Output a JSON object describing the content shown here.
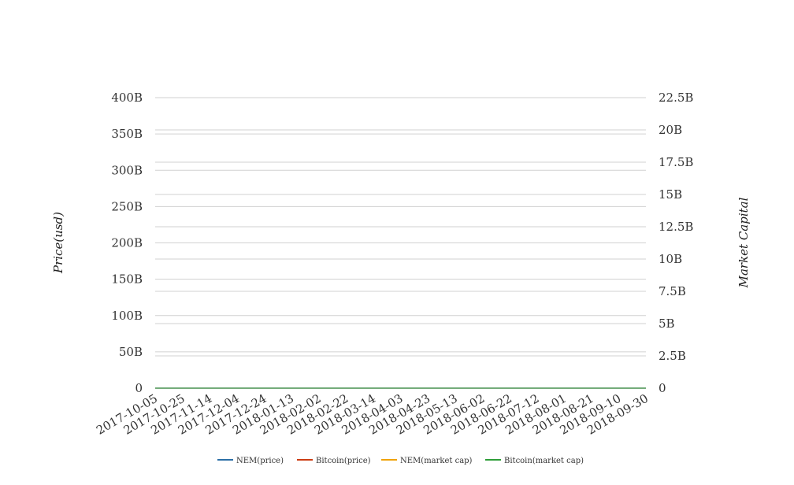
{
  "chart_data": {
    "type": "line",
    "ylabel": "Price(usd)",
    "y2label": "Market Capital",
    "ylim": [
      0,
      400000000000
    ],
    "y2lim": [
      0,
      22500000000
    ],
    "y_ticks": [
      "0",
      "50B",
      "100B",
      "150B",
      "200B",
      "250B",
      "300B",
      "350B",
      "400B"
    ],
    "y2_ticks": [
      "0",
      "2.5B",
      "5B",
      "7.5B",
      "10B",
      "12.5B",
      "15B",
      "17.5B",
      "20B",
      "22.5B"
    ],
    "x_ticks": [
      "2017-10-05",
      "2017-10-25",
      "2017-11-14",
      "2017-12-04",
      "2017-12-24",
      "2018-01-13",
      "2018-02-02",
      "2018-02-22",
      "2018-03-14",
      "2018-04-03",
      "2018-04-23",
      "2018-05-13",
      "2018-06-02",
      "2018-06-22",
      "2018-07-12",
      "2018-08-01",
      "2018-08-21",
      "2018-09-10",
      "2018-09-30"
    ],
    "x_range": [
      "2017-10-05",
      "2018-09-30"
    ],
    "grid": true,
    "legend_position": "bottom",
    "series": [
      {
        "name": "NEM(price)",
        "axis": "left",
        "color": "#2c6fa6",
        "x": [
          "2017-10-05",
          "2018-09-30"
        ],
        "values": [
          0,
          0
        ]
      },
      {
        "name": "Bitcoin(price)",
        "axis": "left",
        "color": "#cc3d14",
        "x": [
          "2017-10-05",
          "2017-10-10",
          "2017-10-13",
          "2017-10-18",
          "2017-10-25",
          "2017-10-28",
          "2017-11-02",
          "2017-11-08",
          "2017-11-11",
          "2017-11-14",
          "2017-11-18",
          "2017-11-22",
          "2017-11-26",
          "2017-11-29",
          "2017-12-01",
          "2017-12-04",
          "2017-12-07",
          "2017-12-09",
          "2017-12-12",
          "2017-12-14",
          "2017-12-17",
          "2017-12-19",
          "2017-12-22",
          "2017-12-24",
          "2017-12-26",
          "2017-12-29",
          "2018-01-01",
          "2018-01-03",
          "2018-01-06",
          "2018-01-08",
          "2018-01-10",
          "2018-01-13",
          "2018-01-16",
          "2018-01-18",
          "2018-01-21",
          "2018-01-24",
          "2018-01-28",
          "2018-02-02",
          "2018-02-05",
          "2018-02-08",
          "2018-02-12",
          "2018-02-16",
          "2018-02-20",
          "2018-02-22",
          "2018-02-25",
          "2018-03-01",
          "2018-03-05",
          "2018-03-09",
          "2018-03-13",
          "2018-03-16",
          "2018-03-20",
          "2018-03-25",
          "2018-03-30",
          "2018-04-03",
          "2018-04-06",
          "2018-04-10",
          "2018-04-14",
          "2018-04-18",
          "2018-04-23",
          "2018-04-27",
          "2018-05-01",
          "2018-05-05",
          "2018-05-09",
          "2018-05-13",
          "2018-05-18",
          "2018-05-23",
          "2018-05-28",
          "2018-06-02",
          "2018-06-07",
          "2018-06-12",
          "2018-06-17",
          "2018-06-22",
          "2018-06-27",
          "2018-07-02",
          "2018-07-07",
          "2018-07-12",
          "2018-07-17",
          "2018-07-22",
          "2018-07-27",
          "2018-08-01",
          "2018-08-06",
          "2018-08-11",
          "2018-08-16",
          "2018-08-21",
          "2018-08-26",
          "2018-08-31",
          "2018-09-05",
          "2018-09-10",
          "2018-09-15",
          "2018-09-20",
          "2018-09-25",
          "2018-09-30"
        ],
        "values": [
          70,
          78,
          96,
          94,
          100,
          95,
          118,
          122,
          100,
          130,
          136,
          140,
          155,
          170,
          178,
          190,
          205,
          298,
          255,
          290,
          275,
          325,
          310,
          280,
          250,
          265,
          240,
          270,
          235,
          258,
          240,
          285,
          250,
          215,
          230,
          200,
          190,
          195,
          150,
          130,
          150,
          165,
          175,
          190,
          180,
          175,
          185,
          195,
          170,
          155,
          150,
          135,
          145,
          125,
          118,
          120,
          130,
          138,
          150,
          155,
          160,
          165,
          155,
          150,
          140,
          130,
          125,
          130,
          128,
          120,
          115,
          112,
          108,
          105,
          120,
          110,
          125,
          138,
          130,
          120,
          112,
          110,
          118,
          125,
          128,
          112,
          110,
          115,
          112,
          115,
          118,
          113
        ]
      },
      {
        "name": "NEM(market cap)",
        "axis": "right",
        "color": "#f0a30a",
        "x": [
          "2017-10-05",
          "2017-10-15",
          "2017-10-25",
          "2017-11-04",
          "2017-11-14",
          "2017-11-24",
          "2017-12-04",
          "2017-12-07",
          "2017-12-08",
          "2017-12-10",
          "2017-12-13",
          "2017-12-16",
          "2017-12-19",
          "2017-12-22",
          "2017-12-24",
          "2017-12-27",
          "2017-12-30",
          "2018-01-02",
          "2018-01-03",
          "2018-01-05",
          "2018-01-07",
          "2018-01-09",
          "2018-01-11",
          "2018-01-13",
          "2018-01-15",
          "2018-01-17",
          "2018-01-19",
          "2018-01-22",
          "2018-01-25",
          "2018-01-28",
          "2018-01-31",
          "2018-02-03",
          "2018-02-06",
          "2018-02-08",
          "2018-02-12",
          "2018-02-16",
          "2018-02-22",
          "2018-03-01",
          "2018-03-09",
          "2018-03-14",
          "2018-03-18",
          "2018-03-23",
          "2018-04-03",
          "2018-04-13",
          "2018-04-23",
          "2018-05-03",
          "2018-05-13",
          "2018-05-23",
          "2018-06-02",
          "2018-06-12",
          "2018-06-22",
          "2018-07-02",
          "2018-07-12",
          "2018-07-22",
          "2018-08-01",
          "2018-08-11",
          "2018-08-21",
          "2018-08-31",
          "2018-09-10",
          "2018-09-20",
          "2018-09-30"
        ],
        "values": [
          1.95,
          1.9,
          1.85,
          1.5,
          1.75,
          1.95,
          2.2,
          6.1,
          3.5,
          4.3,
          5.7,
          7.5,
          8.3,
          8.6,
          8.2,
          10.5,
          14.5,
          16.5,
          16.9,
          15.3,
          13.5,
          10.6,
          14.1,
          13.2,
          12.6,
          8.6,
          9.8,
          8.0,
          9.8,
          7.5,
          5.1,
          5.3,
          4.0,
          5.2,
          5.0,
          5.2,
          3.8,
          3.5,
          3.0,
          2.6,
          4.1,
          2.7,
          2.0,
          2.1,
          3.4,
          3.7,
          3.9,
          3.0,
          2.2,
          2.3,
          1.8,
          1.7,
          1.5,
          1.5,
          1.6,
          1.3,
          1.0,
          0.95,
          0.8,
          0.8,
          0.85
        ]
      },
      {
        "name": "Bitcoin(market cap)",
        "axis": "right",
        "color": "#2e9e39",
        "x": [
          "2017-10-05",
          "2018-09-30"
        ],
        "values": [
          0,
          0
        ]
      }
    ]
  }
}
